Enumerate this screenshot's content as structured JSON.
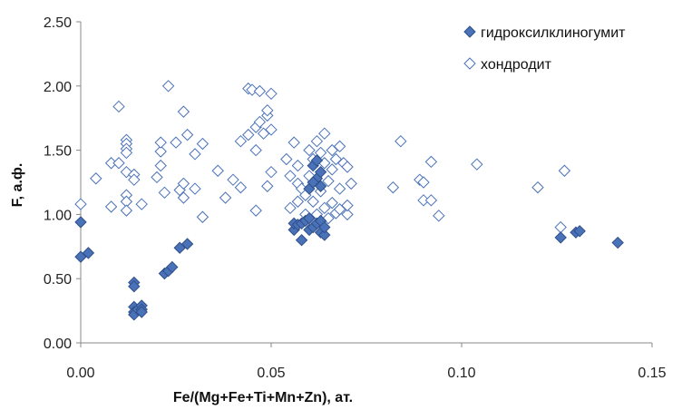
{
  "chart_data": {
    "type": "scatter",
    "xlabel": "Fe/(Mg+Fe+Ti+Mn+Zn), ат.",
    "ylabel": "F, а.ф.",
    "xlim": [
      0,
      0.15
    ],
    "ylim": [
      0,
      2.5
    ],
    "x_ticks": [
      "0.00",
      "0.05",
      "0.10",
      "0.15"
    ],
    "y_ticks": [
      "0.00",
      "0.50",
      "1.00",
      "1.50",
      "2.00",
      "2.50"
    ],
    "grid": false,
    "legend_position": "top-right",
    "series": [
      {
        "name": "гидроксилклиногумит",
        "marker": "filled-diamond",
        "color": "#4a72b8",
        "points": [
          [
            0.0,
            0.94
          ],
          [
            0.0,
            0.67
          ],
          [
            0.002,
            0.7
          ],
          [
            0.014,
            0.47
          ],
          [
            0.014,
            0.44
          ],
          [
            0.014,
            0.28
          ],
          [
            0.014,
            0.24
          ],
          [
            0.014,
            0.22
          ],
          [
            0.015,
            0.26
          ],
          [
            0.016,
            0.29
          ],
          [
            0.016,
            0.26
          ],
          [
            0.016,
            0.24
          ],
          [
            0.022,
            0.54
          ],
          [
            0.023,
            0.56
          ],
          [
            0.024,
            0.59
          ],
          [
            0.026,
            0.74
          ],
          [
            0.028,
            0.77
          ],
          [
            0.056,
            0.88
          ],
          [
            0.056,
            0.93
          ],
          [
            0.057,
            0.92
          ],
          [
            0.058,
            0.8
          ],
          [
            0.058,
            0.93
          ],
          [
            0.059,
            0.95
          ],
          [
            0.06,
            0.88
          ],
          [
            0.06,
            0.97
          ],
          [
            0.061,
            0.9
          ],
          [
            0.061,
            1.38
          ],
          [
            0.062,
            0.93
          ],
          [
            0.062,
            1.28
          ],
          [
            0.062,
            1.42
          ],
          [
            0.063,
            0.86
          ],
          [
            0.063,
            0.95
          ],
          [
            0.063,
            1.33
          ],
          [
            0.064,
            0.84
          ],
          [
            0.064,
            0.9
          ],
          [
            0.06,
            1.2
          ],
          [
            0.061,
            1.25
          ],
          [
            0.063,
            1.22
          ],
          [
            0.126,
            0.82
          ],
          [
            0.13,
            0.86
          ],
          [
            0.131,
            0.87
          ],
          [
            0.141,
            0.78
          ]
        ]
      },
      {
        "name": "хондродит",
        "marker": "open-diamond",
        "color": "#4a72b8",
        "points": [
          [
            0.0,
            1.08
          ],
          [
            0.004,
            1.28
          ],
          [
            0.008,
            1.06
          ],
          [
            0.008,
            1.4
          ],
          [
            0.01,
            1.84
          ],
          [
            0.01,
            1.4
          ],
          [
            0.012,
            1.58
          ],
          [
            0.012,
            1.55
          ],
          [
            0.012,
            1.51
          ],
          [
            0.012,
            1.48
          ],
          [
            0.012,
            1.33
          ],
          [
            0.012,
            1.15
          ],
          [
            0.012,
            1.1
          ],
          [
            0.012,
            1.03
          ],
          [
            0.014,
            1.31
          ],
          [
            0.014,
            1.27
          ],
          [
            0.016,
            1.08
          ],
          [
            0.02,
            1.29
          ],
          [
            0.021,
            1.38
          ],
          [
            0.021,
            1.49
          ],
          [
            0.021,
            1.56
          ],
          [
            0.022,
            1.17
          ],
          [
            0.023,
            2.0
          ],
          [
            0.025,
            1.56
          ],
          [
            0.026,
            1.19
          ],
          [
            0.027,
            1.13
          ],
          [
            0.027,
            1.24
          ],
          [
            0.027,
            1.8
          ],
          [
            0.028,
            1.62
          ],
          [
            0.03,
            1.2
          ],
          [
            0.03,
            1.47
          ],
          [
            0.032,
            1.55
          ],
          [
            0.032,
            0.98
          ],
          [
            0.036,
            1.34
          ],
          [
            0.038,
            1.13
          ],
          [
            0.04,
            1.27
          ],
          [
            0.042,
            1.21
          ],
          [
            0.042,
            1.57
          ],
          [
            0.044,
            1.62
          ],
          [
            0.044,
            1.98
          ],
          [
            0.045,
            1.97
          ],
          [
            0.046,
            1.5
          ],
          [
            0.046,
            1.03
          ],
          [
            0.046,
            1.68
          ],
          [
            0.047,
            1.72
          ],
          [
            0.047,
            1.96
          ],
          [
            0.048,
            1.63
          ],
          [
            0.049,
            1.22
          ],
          [
            0.049,
            1.77
          ],
          [
            0.049,
            1.81
          ],
          [
            0.05,
            1.94
          ],
          [
            0.05,
            1.66
          ],
          [
            0.05,
            1.33
          ],
          [
            0.054,
            1.43
          ],
          [
            0.055,
            1.3
          ],
          [
            0.055,
            1.05
          ],
          [
            0.056,
            1.56
          ],
          [
            0.057,
            1.1
          ],
          [
            0.057,
            1.24
          ],
          [
            0.057,
            1.38
          ],
          [
            0.058,
            1.2
          ],
          [
            0.059,
            1.0
          ],
          [
            0.059,
            1.15
          ],
          [
            0.06,
            1.5
          ],
          [
            0.06,
            1.3
          ],
          [
            0.061,
            1.1
          ],
          [
            0.061,
            1.43
          ],
          [
            0.062,
            1.0
          ],
          [
            0.062,
            1.57
          ],
          [
            0.063,
            1.18
          ],
          [
            0.063,
            1.48
          ],
          [
            0.064,
            1.4
          ],
          [
            0.064,
            1.63
          ],
          [
            0.064,
            1.05
          ],
          [
            0.065,
            1.26
          ],
          [
            0.065,
            0.97
          ],
          [
            0.066,
            1.5
          ],
          [
            0.066,
            1.35
          ],
          [
            0.066,
            1.09
          ],
          [
            0.067,
            1.01
          ],
          [
            0.067,
            1.43
          ],
          [
            0.068,
            1.53
          ],
          [
            0.068,
            1.2
          ],
          [
            0.068,
            1.04
          ],
          [
            0.069,
            1.4
          ],
          [
            0.07,
            1.37
          ],
          [
            0.07,
            1.0
          ],
          [
            0.07,
            1.07
          ],
          [
            0.071,
            1.24
          ],
          [
            0.082,
            1.21
          ],
          [
            0.084,
            1.57
          ],
          [
            0.089,
            1.27
          ],
          [
            0.09,
            1.11
          ],
          [
            0.09,
            1.25
          ],
          [
            0.092,
            1.41
          ],
          [
            0.092,
            1.11
          ],
          [
            0.094,
            0.99
          ],
          [
            0.104,
            1.39
          ],
          [
            0.12,
            1.21
          ],
          [
            0.126,
            0.9
          ],
          [
            0.127,
            1.34
          ]
        ]
      }
    ]
  }
}
